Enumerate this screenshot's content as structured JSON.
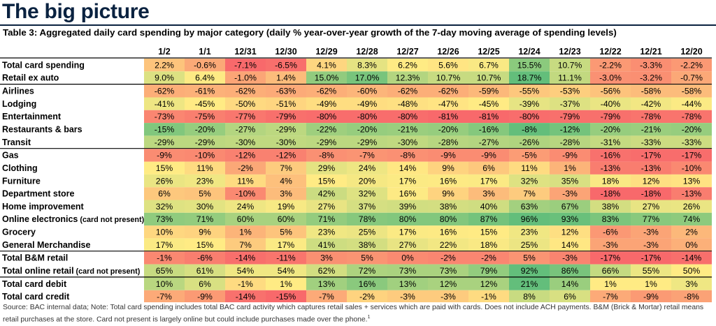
{
  "header": {
    "title": "The big picture",
    "table_title": "Table 3: Aggregated daily card spending by major category (daily % year-over-year growth of the 7-day moving average of spending levels)"
  },
  "footer": {
    "source": "Source: BAC internal data; Note: Total card spending includes total BAC card activity which captures retail sales + services which are paid with cards. Does not include ACH payments. B&M (Brick & Mortar) retail means retail purchases at the store. Card not present is largely online but could include purchases made over the phone.",
    "footnote_mark": "1"
  },
  "colors": {
    "header_text": "#0a2240",
    "scale_low": "#f8696b",
    "scale_mid": "#ffeb84",
    "scale_high": "#63be7b"
  },
  "chart_data": {
    "type": "heatmap",
    "columns": [
      "1/2",
      "1/1",
      "12/31",
      "12/30",
      "12/29",
      "12/28",
      "12/27",
      "12/26",
      "12/25",
      "12/24",
      "12/23",
      "12/22",
      "12/21",
      "12/20"
    ],
    "groups": [
      {
        "rows": [
          {
            "label": "Total card spending",
            "values": [
              "2.2%",
              "-0.6%",
              "-7.1%",
              "-6.5%",
              "4.1%",
              "8.3%",
              "6.2%",
              "5.6%",
              "6.7%",
              "15.5%",
              "10.7%",
              "-2.2%",
              "-3.3%",
              "-2.2%"
            ]
          },
          {
            "label": "Retail ex auto",
            "values": [
              "9.0%",
              "6.4%",
              "-1.0%",
              "1.4%",
              "15.0%",
              "17.0%",
              "12.3%",
              "10.7%",
              "10.7%",
              "18.7%",
              "11.1%",
              "-3.0%",
              "-3.2%",
              "-0.7%"
            ]
          }
        ]
      },
      {
        "rows": [
          {
            "label": "Airlines",
            "values": [
              "-62%",
              "-61%",
              "-62%",
              "-63%",
              "-62%",
              "-60%",
              "-62%",
              "-62%",
              "-59%",
              "-55%",
              "-53%",
              "-56%",
              "-58%",
              "-58%"
            ]
          },
          {
            "label": "Lodging",
            "values": [
              "-41%",
              "-45%",
              "-50%",
              "-51%",
              "-49%",
              "-49%",
              "-48%",
              "-47%",
              "-45%",
              "-39%",
              "-37%",
              "-40%",
              "-42%",
              "-44%"
            ]
          },
          {
            "label": "Entertainment",
            "values": [
              "-73%",
              "-75%",
              "-77%",
              "-79%",
              "-80%",
              "-80%",
              "-80%",
              "-81%",
              "-81%",
              "-80%",
              "-79%",
              "-79%",
              "-78%",
              "-78%"
            ]
          },
          {
            "label": "Restaurants & bars",
            "values": [
              "-15%",
              "-20%",
              "-27%",
              "-29%",
              "-22%",
              "-20%",
              "-21%",
              "-20%",
              "-16%",
              "-8%",
              "-12%",
              "-20%",
              "-21%",
              "-20%"
            ]
          },
          {
            "label": "Transit",
            "values": [
              "-29%",
              "-29%",
              "-30%",
              "-30%",
              "-29%",
              "-29%",
              "-30%",
              "-28%",
              "-27%",
              "-26%",
              "-28%",
              "-31%",
              "-33%",
              "-33%"
            ]
          }
        ]
      },
      {
        "rows": [
          {
            "label": "Gas",
            "values": [
              "-9%",
              "-10%",
              "-12%",
              "-12%",
              "-8%",
              "-7%",
              "-8%",
              "-9%",
              "-9%",
              "-5%",
              "-9%",
              "-16%",
              "-17%",
              "-17%"
            ]
          },
          {
            "label": "Clothing",
            "values": [
              "15%",
              "11%",
              "-2%",
              "7%",
              "29%",
              "24%",
              "14%",
              "9%",
              "6%",
              "11%",
              "1%",
              "-13%",
              "-13%",
              "-10%"
            ]
          },
          {
            "label": "Furniture",
            "values": [
              "26%",
              "23%",
              "11%",
              "4%",
              "15%",
              "20%",
              "17%",
              "16%",
              "17%",
              "32%",
              "35%",
              "18%",
              "12%",
              "13%"
            ]
          },
          {
            "label": "Department store",
            "values": [
              "6%",
              "5%",
              "-10%",
              "3%",
              "42%",
              "32%",
              "16%",
              "9%",
              "3%",
              "7%",
              "-3%",
              "-18%",
              "-18%",
              "-13%"
            ]
          },
          {
            "label": "Home improvement",
            "values": [
              "32%",
              "30%",
              "24%",
              "19%",
              "27%",
              "37%",
              "39%",
              "38%",
              "40%",
              "63%",
              "67%",
              "38%",
              "27%",
              "26%"
            ]
          },
          {
            "label": "Online electronics",
            "note": "(card not present)",
            "values": [
              "73%",
              "71%",
              "60%",
              "60%",
              "71%",
              "78%",
              "80%",
              "80%",
              "87%",
              "96%",
              "93%",
              "83%",
              "77%",
              "74%"
            ]
          },
          {
            "label": "Grocery",
            "values": [
              "10%",
              "9%",
              "1%",
              "5%",
              "23%",
              "25%",
              "17%",
              "16%",
              "15%",
              "23%",
              "12%",
              "-6%",
              "-3%",
              "2%"
            ]
          },
          {
            "label": "General Merchandise",
            "values": [
              "17%",
              "15%",
              "7%",
              "17%",
              "41%",
              "38%",
              "27%",
              "22%",
              "18%",
              "25%",
              "14%",
              "-3%",
              "-3%",
              "0%"
            ]
          }
        ]
      },
      {
        "rows": [
          {
            "label": "Total B&M retail",
            "values": [
              "-1%",
              "-6%",
              "-14%",
              "-11%",
              "3%",
              "5%",
              "0%",
              "-2%",
              "-2%",
              "5%",
              "-3%",
              "-17%",
              "-17%",
              "-14%"
            ]
          },
          {
            "label": "Total online retail",
            "note": "(card not present)",
            "values": [
              "65%",
              "61%",
              "54%",
              "54%",
              "62%",
              "72%",
              "73%",
              "73%",
              "79%",
              "92%",
              "86%",
              "66%",
              "55%",
              "50%"
            ]
          }
        ]
      },
      {
        "rows": [
          {
            "label": "Total card debit",
            "values": [
              "10%",
              "6%",
              "-1%",
              "1%",
              "13%",
              "16%",
              "13%",
              "12%",
              "12%",
              "21%",
              "14%",
              "1%",
              "1%",
              "3%"
            ]
          },
          {
            "label": "Total card credit",
            "values": [
              "-7%",
              "-9%",
              "-14%",
              "-15%",
              "-7%",
              "-2%",
              "-3%",
              "-3%",
              "-1%",
              "8%",
              "6%",
              "-7%",
              "-9%",
              "-8%"
            ]
          }
        ]
      }
    ]
  }
}
